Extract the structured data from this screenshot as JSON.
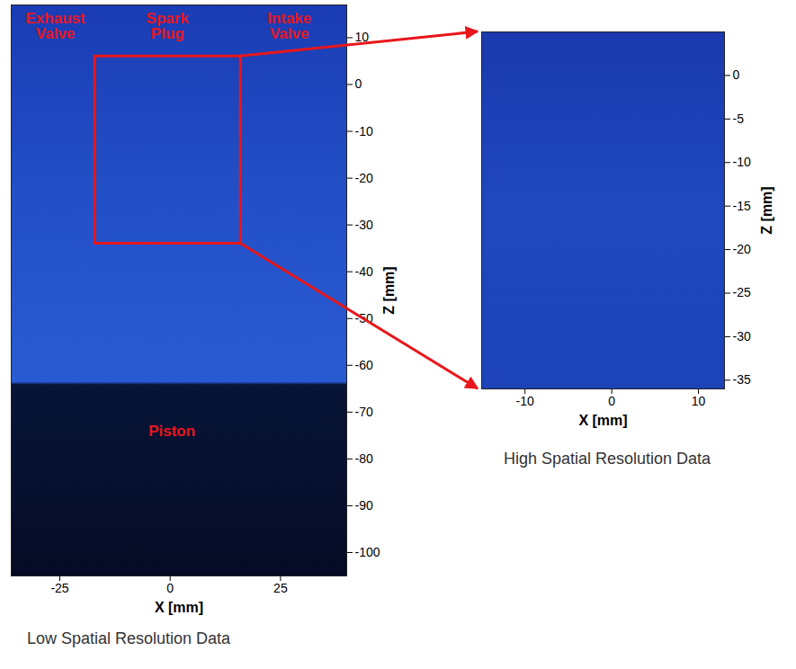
{
  "chart_data": [
    {
      "type": "image",
      "caption": "Low Spatial Resolution Data",
      "xlabel": "X [mm]",
      "ylabel": "Z [mm]",
      "xlim": [
        -36,
        40
      ],
      "ylim": [
        -105,
        17
      ],
      "xticks": [
        -25,
        0,
        25
      ],
      "yticks": [
        10,
        0,
        -10,
        -20,
        -30,
        -40,
        -50,
        -60,
        -70,
        -80,
        -90,
        -100
      ],
      "annotations": [
        {
          "text": "Exhaust Valve",
          "x": -26,
          "y": 12.5,
          "color": "#e8161b"
        },
        {
          "text": "Spark Plug",
          "x": -0.6,
          "y": 12.5,
          "color": "#e8161b"
        },
        {
          "text": "Intake Valve",
          "x": 27,
          "y": 12.5,
          "color": "#e8161b"
        },
        {
          "text": "Piston",
          "x": 0.4,
          "y": -74,
          "color": "#e8161b"
        }
      ],
      "zoom_region": {
        "xlim": [
          -17,
          16
        ],
        "ylim": [
          -34,
          6
        ],
        "color": "#e8161b"
      }
    },
    {
      "type": "image",
      "caption": "High Spatial Resolution Data",
      "xlabel": "X [mm]",
      "ylabel": "Z [mm]",
      "xlim": [
        -15,
        13
      ],
      "ylim": [
        -36,
        5
      ],
      "xticks": [
        -10,
        0,
        10
      ],
      "yticks": [
        0,
        -5,
        -10,
        -15,
        -20,
        -25,
        -30,
        -35
      ]
    }
  ]
}
